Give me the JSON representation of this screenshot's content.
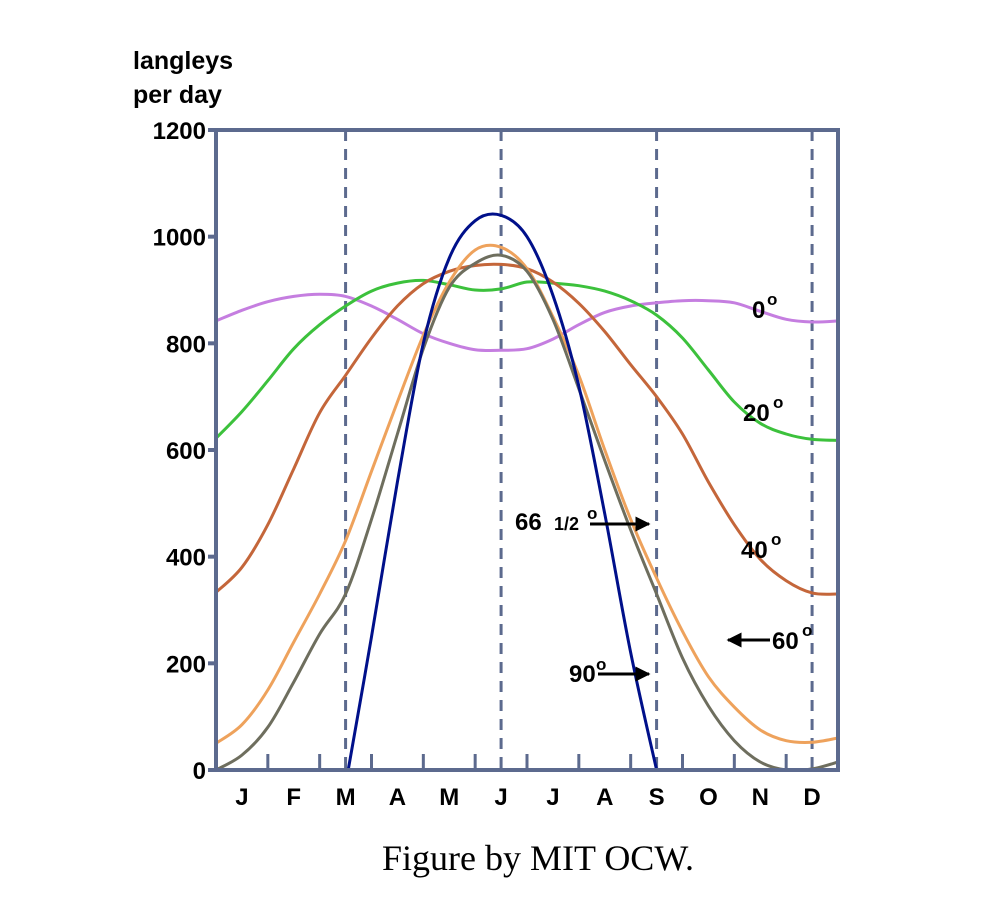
{
  "chart_data": {
    "type": "line",
    "title": "",
    "ylabel_line1": "langleys",
    "ylabel_line2": "per day",
    "xlabel": "",
    "ylim": [
      0,
      1200
    ],
    "xlim": [
      0,
      12
    ],
    "yticks": [
      0,
      200,
      400,
      600,
      800,
      1000,
      1200
    ],
    "ytick_labels": [
      "0",
      "200",
      "400",
      "600",
      "800",
      "1000",
      "1200"
    ],
    "months": [
      "J",
      "F",
      "M",
      "A",
      "M",
      "J",
      "J",
      "A",
      "S",
      "O",
      "N",
      "D"
    ],
    "dashed_guides_month_index": [
      2.5,
      5.5,
      8.5,
      11.5
    ],
    "series": [
      {
        "name": "0°",
        "label_main": "0",
        "label_deg": "o",
        "color": "#c57ee0",
        "x": [
          0,
          0.5,
          1,
          1.5,
          2,
          2.5,
          3,
          3.5,
          4,
          4.5,
          5,
          5.5,
          6,
          6.5,
          7,
          7.5,
          8,
          8.5,
          9,
          9.5,
          10,
          10.5,
          11,
          11.5,
          12
        ],
        "values": [
          842,
          862,
          878,
          888,
          892,
          888,
          870,
          845,
          818,
          800,
          788,
          787,
          790,
          808,
          835,
          858,
          870,
          876,
          880,
          880,
          876,
          860,
          845,
          840,
          842
        ]
      },
      {
        "name": "20°",
        "label_main": "20",
        "label_deg": "o",
        "color": "#3cc13c",
        "x": [
          0,
          0.5,
          1,
          1.5,
          2,
          2.5,
          3,
          3.5,
          4,
          4.5,
          5,
          5.5,
          6,
          6.5,
          7,
          7.5,
          8,
          8.5,
          9,
          9.5,
          10,
          10.5,
          11,
          11.5,
          12
        ],
        "values": [
          622,
          672,
          730,
          790,
          835,
          870,
          898,
          913,
          918,
          910,
          900,
          902,
          915,
          913,
          908,
          898,
          880,
          853,
          810,
          750,
          690,
          650,
          630,
          620,
          618
        ]
      },
      {
        "name": "40°",
        "label_main": "40",
        "label_deg": "o",
        "color": "#c4663a",
        "x": [
          0,
          0.5,
          1,
          1.5,
          2,
          2.5,
          3,
          3.5,
          4,
          4.5,
          5,
          5.5,
          6,
          6.5,
          7,
          7.5,
          8,
          8.5,
          9,
          9.5,
          10,
          10.5,
          11,
          11.5,
          12
        ],
        "values": [
          333,
          380,
          460,
          565,
          670,
          740,
          810,
          870,
          912,
          935,
          946,
          948,
          940,
          915,
          875,
          822,
          760,
          700,
          630,
          540,
          460,
          395,
          355,
          332,
          330
        ]
      },
      {
        "name": "60°",
        "label_main": "60",
        "label_deg": "o",
        "color": "#eea25c",
        "x": [
          0,
          0.5,
          1,
          1.5,
          2,
          2.5,
          3,
          3.5,
          4,
          4.5,
          5,
          5.5,
          6,
          6.5,
          7,
          7.5,
          8,
          8.5,
          9,
          9.5,
          10,
          10.5,
          11,
          11.5,
          12
        ],
        "values": [
          50,
          85,
          150,
          240,
          330,
          430,
          560,
          690,
          815,
          915,
          975,
          980,
          940,
          850,
          740,
          600,
          470,
          360,
          260,
          175,
          118,
          75,
          55,
          52,
          60
        ]
      },
      {
        "name": "66 1/2°",
        "label_main": "66 ",
        "label_frac": "1/2",
        "label_deg": "o",
        "color": "#6e6e5e",
        "x": [
          0,
          0.5,
          1,
          1.5,
          2,
          2.5,
          3,
          3.5,
          4,
          4.5,
          5,
          5.5,
          6,
          6.5,
          7,
          7.5,
          8,
          8.5,
          9,
          9.5,
          10,
          10.5,
          11,
          11.5,
          12
        ],
        "values": [
          0,
          28,
          80,
          165,
          255,
          330,
          470,
          630,
          790,
          905,
          950,
          965,
          935,
          845,
          715,
          580,
          450,
          330,
          210,
          120,
          55,
          15,
          0,
          2,
          15
        ]
      },
      {
        "name": "90°",
        "label_main": "90",
        "label_deg": "o",
        "color": "#00108a",
        "x": [
          2.55,
          3,
          3.5,
          4,
          4.5,
          5,
          5.5,
          6,
          6.5,
          7,
          7.5,
          8,
          8.5
        ],
        "values": [
          0,
          250,
          540,
          800,
          960,
          1030,
          1040,
          1000,
          890,
          720,
          480,
          220,
          0
        ]
      }
    ],
    "annotations": [
      {
        "series": "66 1/2°",
        "arrow": "right"
      },
      {
        "series": "90°",
        "arrow": "right"
      },
      {
        "series": "60°",
        "arrow": "left"
      }
    ],
    "axis_color": "#5c6a8e",
    "grid": false,
    "legend": "inline labels beside curves"
  },
  "footer": {
    "credit": "Figure by MIT OCW."
  }
}
